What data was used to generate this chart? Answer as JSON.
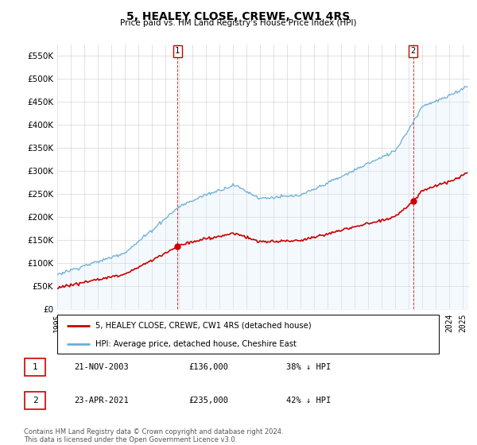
{
  "title": "5, HEALEY CLOSE, CREWE, CW1 4RS",
  "subtitle": "Price paid vs. HM Land Registry's House Price Index (HPI)",
  "hpi_color": "#6aaed6",
  "hpi_fill_color": "#d6eaf8",
  "price_color": "#cc0000",
  "marker_color": "#cc0000",
  "background_color": "#ffffff",
  "grid_color": "#cccccc",
  "ylim": [
    0,
    575000
  ],
  "yticks": [
    0,
    50000,
    100000,
    150000,
    200000,
    250000,
    300000,
    350000,
    400000,
    450000,
    500000,
    550000
  ],
  "xlim_start": 1995.0,
  "xlim_end": 2025.5,
  "sale_years": [
    2003.89,
    2021.31
  ],
  "sale_prices": [
    136000,
    235000
  ],
  "sale_labels": [
    "1",
    "2"
  ],
  "legend_line1": "5, HEALEY CLOSE, CREWE, CW1 4RS (detached house)",
  "legend_line2": "HPI: Average price, detached house, Cheshire East",
  "footnote": "Contains HM Land Registry data © Crown copyright and database right 2024.\nThis data is licensed under the Open Government Licence v3.0.",
  "table": [
    {
      "num": "1",
      "date": "21-NOV-2003",
      "price": "£136,000",
      "pct": "38% ↓ HPI"
    },
    {
      "num": "2",
      "date": "23-APR-2021",
      "price": "£235,000",
      "pct": "42% ↓ HPI"
    }
  ]
}
